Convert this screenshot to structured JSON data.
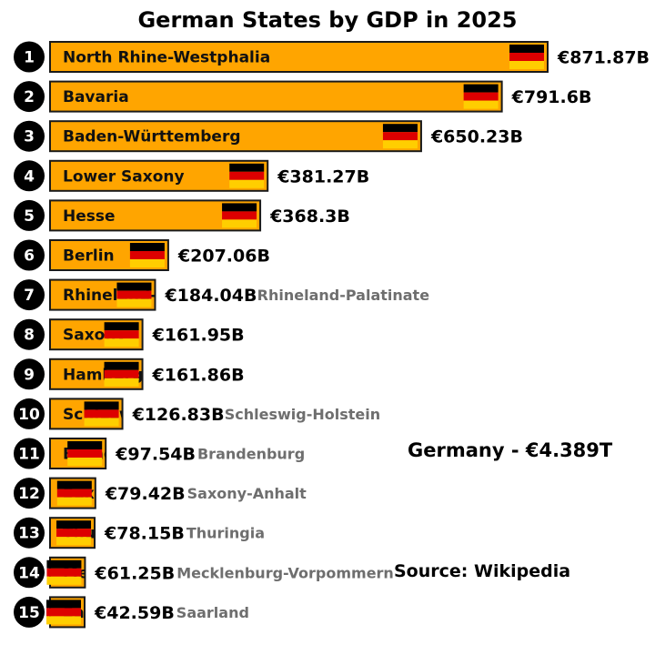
{
  "title": "German States by GDP in 2025",
  "total_label": "Germany - €4.389T",
  "source_label": "Source: Wikipedia",
  "colors": {
    "bar_fill": "#ffa500",
    "bar_stroke": "#1a1a1a",
    "flag_black": "#000000",
    "flag_red": "#dd0000",
    "flag_gold": "#ffce00",
    "outside_label": "#6e6e6e",
    "rank_circle": "#000000",
    "rank_text": "#ffffff"
  },
  "chart_data": {
    "type": "bar",
    "orientation": "horizontal",
    "title": "German States by GDP in 2025",
    "unit": "€ billions",
    "categories": [
      "North Rhine-Westphalia",
      "Bavaria",
      "Baden-Württemberg",
      "Lower Saxony",
      "Hesse",
      "Berlin",
      "Rhineland-Palatinate",
      "Saxony",
      "Hamburg",
      "Schleswig-Holstein",
      "Brandenburg",
      "Saxony-Anhalt",
      "Thuringia",
      "Mecklenburg-Vorpommern",
      "Saarland"
    ],
    "ranks": [
      "1",
      "2",
      "3",
      "4",
      "5",
      "6",
      "7",
      "8",
      "9",
      "10",
      "11",
      "12",
      "13",
      "14",
      "15"
    ],
    "values": [
      871.87,
      791.6,
      650.23,
      381.27,
      368.3,
      207.06,
      184.04,
      161.95,
      161.86,
      126.83,
      97.54,
      79.42,
      78.15,
      61.25,
      42.59
    ],
    "value_labels": [
      "€871.87B",
      "€791.6B",
      "€650.23B",
      "€381.27B",
      "€368.3B",
      "€207.06B",
      "€184.04B",
      "€161.95B",
      "€161.86B",
      "€126.83B",
      "€97.54B",
      "€79.42B",
      "€78.15B",
      "€61.25B",
      "€42.59B"
    ],
    "outside_name_visible": [
      false,
      false,
      false,
      false,
      false,
      false,
      true,
      false,
      false,
      true,
      true,
      true,
      true,
      true,
      true
    ]
  }
}
